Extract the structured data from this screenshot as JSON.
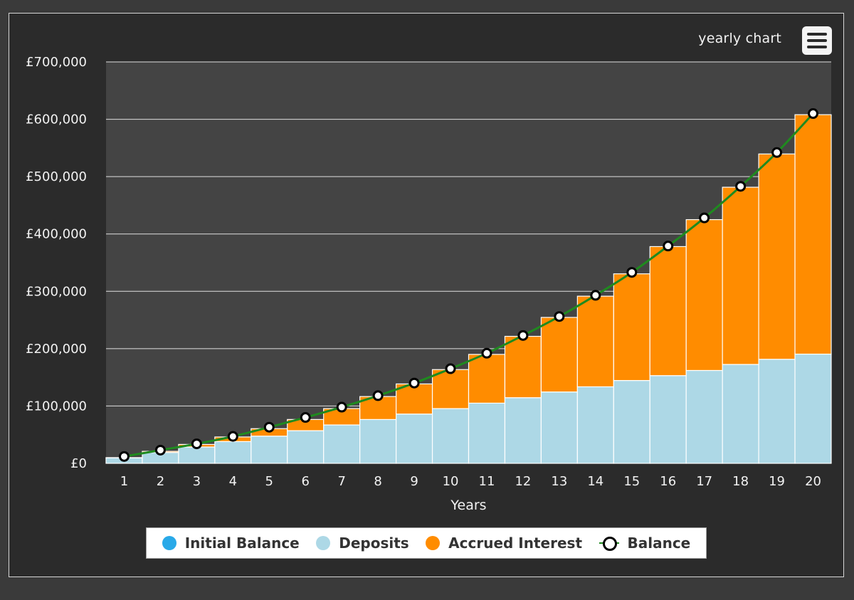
{
  "header": {
    "title": "yearly chart",
    "menu_icon": "hamburger-menu-icon"
  },
  "colors": {
    "plot_bg": "#444444",
    "initial": "#29a9e8",
    "deposits": "#add8e6",
    "interest": "#ff8c00",
    "balance_line": "#1f8a1f",
    "grid": "#e0e0e0",
    "text": "#f2f2f2"
  },
  "chart_data": {
    "type": "bar",
    "stacked": true,
    "xlabel": "Years",
    "ylabel": "",
    "ylim": [
      0,
      700000
    ],
    "ytick_values": [
      0,
      100000,
      200000,
      300000,
      400000,
      500000,
      600000,
      700000
    ],
    "ytick_labels": [
      "£0",
      "£100,000",
      "£200,000",
      "£300,000",
      "£400,000",
      "£500,000",
      "£600,000",
      "£700,000"
    ],
    "grid": true,
    "legend_position": "bottom",
    "categories": [
      "1",
      "2",
      "3",
      "4",
      "5",
      "6",
      "7",
      "8",
      "9",
      "10",
      "11",
      "12",
      "13",
      "14",
      "15",
      "16",
      "17",
      "18",
      "19",
      "20"
    ],
    "series": [
      {
        "name": "Initial Balance",
        "type": "bar",
        "values": [
          0,
          0,
          0,
          0,
          0,
          0,
          0,
          0,
          0,
          0,
          0,
          0,
          0,
          0,
          0,
          0,
          0,
          0,
          0,
          0
        ]
      },
      {
        "name": "Deposits",
        "type": "bar",
        "values": [
          9500,
          19000,
          28500,
          38000,
          47500,
          57000,
          67000,
          76500,
          86000,
          95500,
          105000,
          114500,
          124500,
          133500,
          144500,
          153000,
          162000,
          172500,
          181500,
          190500
        ]
      },
      {
        "name": "Accrued Interest",
        "type": "bar",
        "values": [
          500,
          2000,
          4500,
          8000,
          13000,
          19500,
          28500,
          40000,
          52500,
          68000,
          85000,
          107000,
          130000,
          158000,
          186000,
          225000,
          263000,
          309000,
          358000,
          417500
        ]
      },
      {
        "name": "Balance",
        "type": "line",
        "values": [
          12000,
          23000,
          34000,
          47000,
          63000,
          80000,
          98000,
          118000,
          140000,
          165000,
          192000,
          223000,
          256000,
          293000,
          333000,
          379000,
          428000,
          483000,
          542000,
          610000
        ]
      }
    ]
  }
}
